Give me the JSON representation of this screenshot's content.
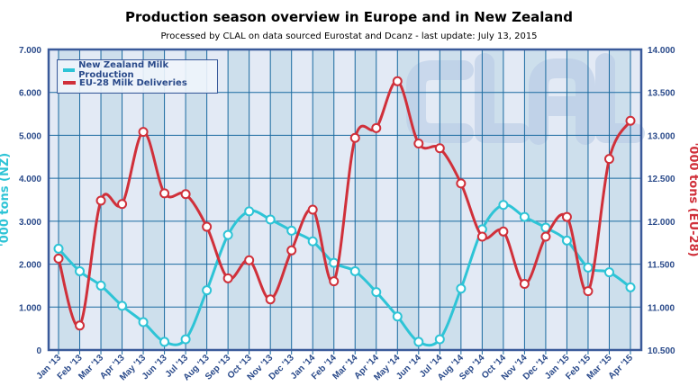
{
  "chart_data": {
    "type": "line",
    "title": "Production season overview in Europe and in New Zealand",
    "subtitle": "Processed by CLAL on data sourced Eurostat and Dcanz - last update: July 13, 2015",
    "watermark": "CLAL",
    "categories": [
      "Jan '13",
      "Feb '13",
      "Mar '13",
      "Apr '13",
      "May '13",
      "Jun '13",
      "Jul '13",
      "Aug '13",
      "Sep '13",
      "Oct '13",
      "Nov '13",
      "Dec '13",
      "Jan '14",
      "Feb '14",
      "Mar '14",
      "Apr '14",
      "May '14",
      "Jun '14",
      "Jul '14",
      "Aug '14",
      "Sep '14",
      "Oct '14",
      "Nov '14",
      "Dec '14",
      "Jan '15",
      "Feb '15",
      "Mar '15",
      "Apr '15"
    ],
    "ylabel_left": "'000 tons (NZ)",
    "ylabel_right": "'000 tons (EU-28)",
    "ylim_left": [
      0,
      7000
    ],
    "ylim_right": [
      10500,
      14000
    ],
    "yticks_left": [
      "0",
      "1.000",
      "2.000",
      "3.000",
      "4.000",
      "5.000",
      "6.000",
      "7.000"
    ],
    "yticks_right": [
      "10.500",
      "11.000",
      "11.500",
      "12.000",
      "12.500",
      "13.000",
      "13.500",
      "14.000"
    ],
    "grid": true,
    "legend_position": "top-left",
    "series": [
      {
        "name": "New Zealand Milk Production",
        "axis": "left",
        "color": "#2ec4d6",
        "values": [
          2360,
          1835,
          1500,
          1030,
          650,
          190,
          250,
          1390,
          2680,
          3230,
          3040,
          2780,
          2530,
          2030,
          1835,
          1350,
          780,
          190,
          250,
          1430,
          2810,
          3380,
          3100,
          2850,
          2550,
          1920,
          1810,
          1460
        ]
      },
      {
        "name": "EU-28 Milk Deliveries",
        "axis": "right",
        "color": "#d0303a",
        "values": [
          11565,
          10785,
          12240,
          12200,
          13040,
          12325,
          12315,
          11935,
          11335,
          11545,
          11090,
          11660,
          12135,
          11300,
          12970,
          13085,
          13630,
          12905,
          12850,
          12440,
          11820,
          11880,
          11270,
          11820,
          12050,
          11185,
          12725,
          13170
        ]
      }
    ]
  }
}
